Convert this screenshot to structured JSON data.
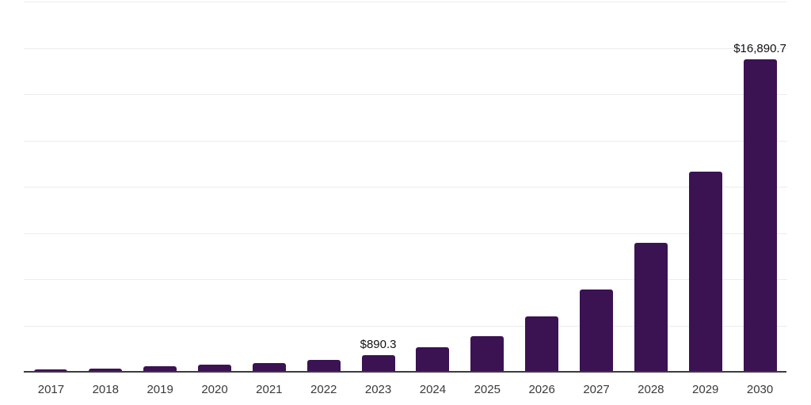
{
  "page": {
    "background_color": "#ffffff"
  },
  "chart_data": {
    "type": "bar",
    "title": "",
    "xlabel": "",
    "ylabel": "",
    "categories": [
      "2017",
      "2018",
      "2019",
      "2020",
      "2021",
      "2022",
      "2023",
      "2024",
      "2025",
      "2026",
      "2027",
      "2028",
      "2029",
      "2030"
    ],
    "values": [
      125,
      170,
      285,
      385,
      470,
      640,
      890.3,
      1320,
      1920,
      2990,
      4440,
      6980,
      10810,
      16890.7
    ],
    "annotations": [
      {
        "category": "2023",
        "text": "$890.3"
      },
      {
        "category": "2030",
        "text": "$16,890.7"
      }
    ],
    "ylim": [
      0,
      20000
    ],
    "gridline_step": 2500,
    "grid": true,
    "legend_position": "none",
    "y_axis_ticks_visible": false,
    "colors": {
      "bar": "#3b1252",
      "axis_line": "#3c3c3c",
      "gridline": "#ececec",
      "tick_label": "#3a3a3a",
      "annotation": "#111111"
    }
  }
}
